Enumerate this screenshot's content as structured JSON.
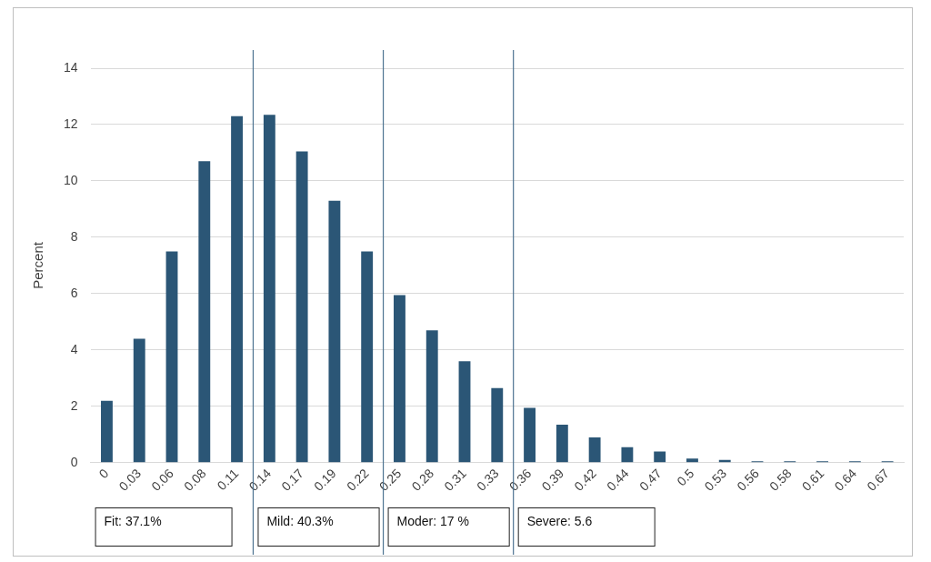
{
  "chart_data": {
    "type": "bar",
    "categories": [
      "0",
      "0.03",
      "0.06",
      "0.08",
      "0.11",
      "0.14",
      "0.17",
      "0.19",
      "0.22",
      "0.25",
      "0.28",
      "0.31",
      "0.33",
      "0.36",
      "0.39",
      "0.42",
      "0.44",
      "0.47",
      "0.5",
      "0.53",
      "0.56",
      "0.58",
      "0.61",
      "0.64",
      "0.67"
    ],
    "values": [
      2.2,
      4.4,
      7.5,
      10.7,
      12.3,
      12.35,
      11.05,
      9.3,
      7.5,
      5.95,
      4.7,
      3.6,
      2.65,
      1.95,
      1.35,
      0.9,
      0.55,
      0.4,
      0.15,
      0.1,
      0.05,
      0.05,
      0.05,
      0.05,
      0.05
    ],
    "color": "#2b5676",
    "y_label": "Percent",
    "ylim": [
      0,
      14
    ],
    "yticks": [
      0,
      2,
      4,
      6,
      8,
      10,
      12,
      14
    ],
    "grid": true,
    "annotations": [
      {
        "text": "Fit: 37.1%",
        "from": "0",
        "to": "0.11"
      },
      {
        "text": "Mild: 40.3%",
        "from": "0.14",
        "to": "0.22"
      },
      {
        "text": "Moder: 17 %",
        "from": "0.25",
        "to": "0.33"
      },
      {
        "text": "Severe: 5.6",
        "from": "0.36",
        "to": "0.67"
      }
    ]
  }
}
